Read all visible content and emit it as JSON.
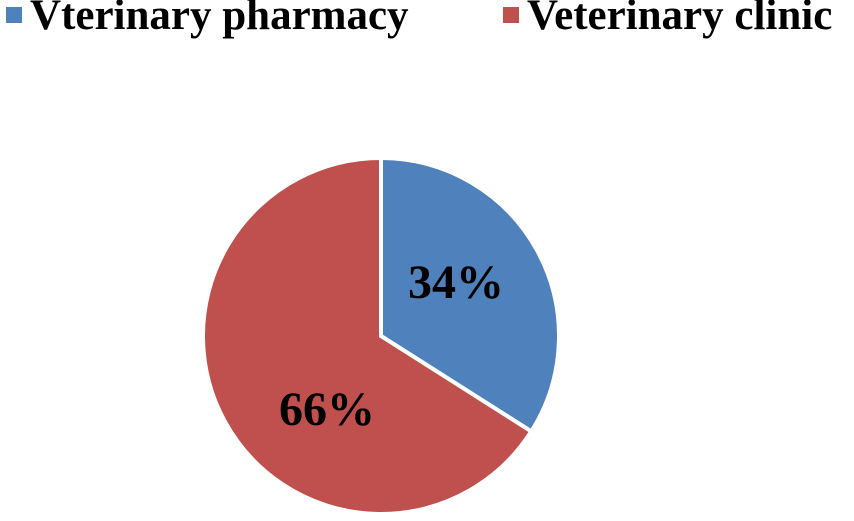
{
  "chart_data": {
    "type": "pie",
    "categories": [
      "Vterinary pharmacy",
      "Veterinary clinic"
    ],
    "values": [
      34,
      66
    ],
    "data_labels": [
      "34%",
      "66%"
    ],
    "colors": [
      "#4f81bd",
      "#c0504d"
    ],
    "legend_placement": "top"
  }
}
